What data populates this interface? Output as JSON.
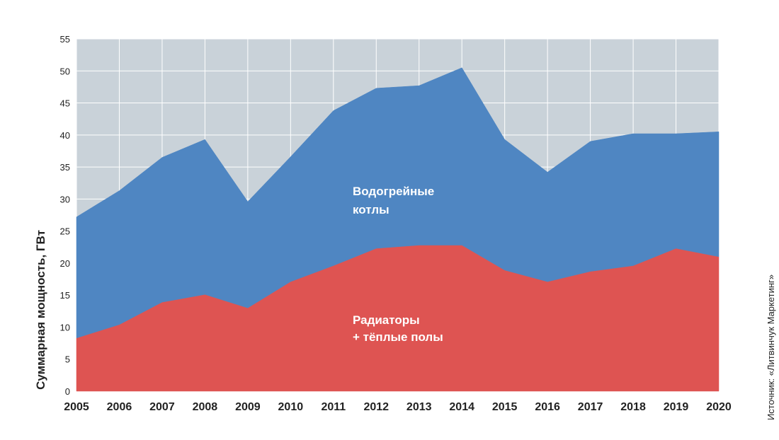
{
  "chart_data": {
    "type": "area",
    "stacked": true,
    "x": [
      2005,
      2006,
      2007,
      2008,
      2009,
      2010,
      2011,
      2012,
      2013,
      2014,
      2015,
      2016,
      2017,
      2018,
      2019,
      2020
    ],
    "x_tick_labels": [
      "2005",
      "2006",
      "2007",
      "2008",
      "2009",
      "2010",
      "2011",
      "2012",
      "2013",
      "2014",
      "2015",
      "2016",
      "2017",
      "2018",
      "2019",
      "2020"
    ],
    "y_tick_labels": [
      "0",
      "5",
      "10",
      "15",
      "20",
      "25",
      "30",
      "35",
      "40",
      "45",
      "50",
      "55"
    ],
    "ylim": [
      0,
      55
    ],
    "xlabel": "",
    "ylabel": "Суммарная мощность, ГВт",
    "grid": true,
    "series": [
      {
        "label_lines": [
          "Радиаторы",
          "+ тёплые полы"
        ],
        "color": "#de5452",
        "values": [
          8.3,
          10.4,
          13.9,
          15.1,
          13.0,
          17.1,
          19.6,
          22.3,
          22.8,
          22.8,
          18.9,
          17.1,
          18.7,
          19.6,
          22.3,
          21.0
        ]
      },
      {
        "label_lines": [
          "Водогрейные",
          "котлы"
        ],
        "color": "#4f86c2",
        "values": [
          18.9,
          20.9,
          22.6,
          24.2,
          16.6,
          19.5,
          24.2,
          25.0,
          24.9,
          27.7,
          20.4,
          17.1,
          20.3,
          20.6,
          17.9,
          19.5
        ]
      }
    ],
    "source": "Источник: «Литвинчук Маркетинг»",
    "colors": {
      "plot_background": "#c9d2d9",
      "grid": "#ffffff",
      "text": "#222222"
    }
  }
}
